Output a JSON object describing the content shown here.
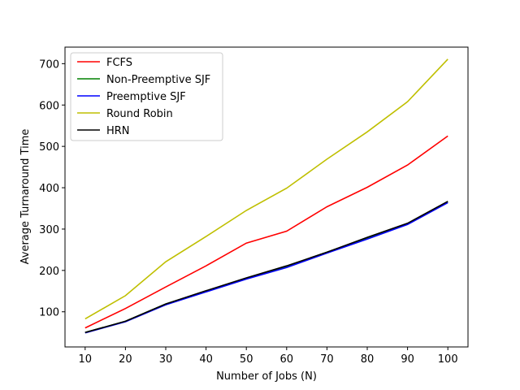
{
  "chart_data": {
    "type": "line",
    "title": "",
    "xlabel": "Number of Jobs (N)",
    "ylabel": "Average Turnaround Time",
    "x": [
      10,
      20,
      30,
      40,
      50,
      60,
      70,
      80,
      90,
      100
    ],
    "xlim": [
      5,
      105
    ],
    "ylim": [
      15,
      740
    ],
    "xticks": [
      10,
      20,
      30,
      40,
      50,
      60,
      70,
      80,
      90,
      100
    ],
    "yticks": [
      100,
      200,
      300,
      400,
      500,
      600,
      700
    ],
    "grid": false,
    "legend_position": "top-left",
    "series": [
      {
        "name": "FCFS",
        "color": "#ff0000",
        "values": [
          61,
          108,
          160,
          211,
          266,
          295,
          354,
          401,
          455,
          525
        ]
      },
      {
        "name": "Non-Preemptive SJF",
        "color": "#008000",
        "values": [
          50,
          77,
          119,
          150,
          181,
          210,
          244,
          278,
          313,
          366
        ]
      },
      {
        "name": "Preemptive SJF",
        "color": "#0000ff",
        "values": [
          49,
          76,
          117,
          148,
          179,
          207,
          242,
          276,
          311,
          364
        ]
      },
      {
        "name": "Round Robin",
        "color": "#bfbf00",
        "values": [
          83,
          139,
          221,
          282,
          345,
          399,
          469,
          535,
          608,
          711
        ]
      },
      {
        "name": "HRN",
        "color": "#000000",
        "values": [
          50,
          77,
          119,
          151,
          182,
          211,
          244,
          280,
          314,
          367
        ]
      }
    ]
  }
}
